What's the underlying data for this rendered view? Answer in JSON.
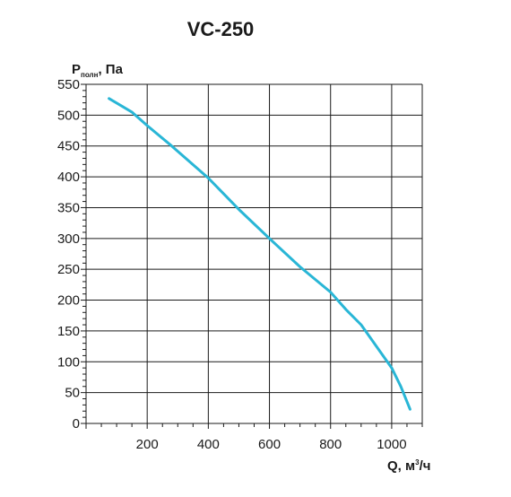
{
  "chart_data": {
    "type": "line",
    "title": "VC-250",
    "ylabel": {
      "main": "P",
      "sub": "полн",
      "unit": ", Па"
    },
    "xlabel": {
      "main": "Q, м",
      "sup": "3",
      "unit": "/ч"
    },
    "xlim": [
      0,
      1100
    ],
    "ylim": [
      0,
      550
    ],
    "x_ticks": [
      200,
      400,
      600,
      800,
      1000
    ],
    "y_ticks": [
      0,
      50,
      100,
      150,
      200,
      250,
      300,
      350,
      400,
      450,
      500,
      550
    ],
    "grid": true,
    "line_color": "#29b6d6",
    "series": [
      {
        "x": [
          75,
          150,
          200,
          280,
          400,
          500,
          600,
          700,
          800,
          850,
          900,
          950,
          1000,
          1030,
          1060
        ],
        "y": [
          527,
          505,
          483,
          450,
          398,
          347,
          300,
          254,
          213,
          185,
          160,
          125,
          90,
          60,
          23
        ]
      }
    ]
  }
}
